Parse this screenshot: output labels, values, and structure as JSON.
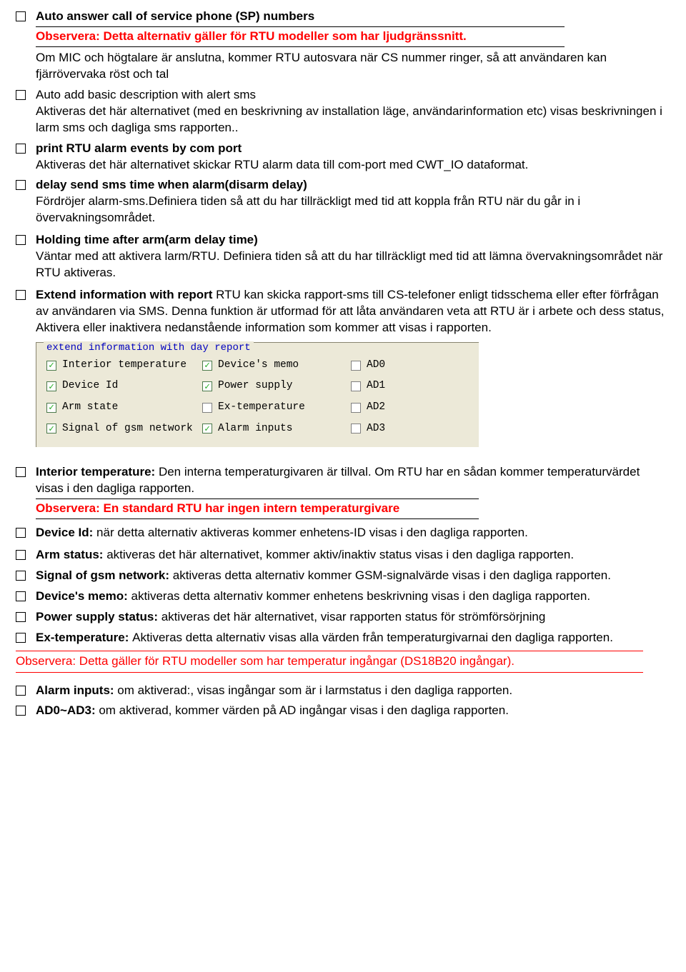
{
  "items": {
    "auto_answer": {
      "title": "Auto answer call of service phone (SP) numbers",
      "note": "Observera: Detta alternativ gäller för RTU modeller som har ljudgränssnitt.",
      "desc": "Om MIC och högtalare är anslutna, kommer RTU autosvara när CS nummer ringer, så att användaren kan fjärrövervaka röst och tal"
    },
    "auto_add": {
      "title": "Auto add basic description with alert sms",
      "desc": "Aktiveras det här alternativet  (med en beskrivning av installation läge, användarinformation etc) visas beskrivningen i larm sms och dagliga sms rapporten.."
    },
    "print_rtu": {
      "title": "print RTU alarm events by com port",
      "desc": "Aktiveras det här alternativet skickar RTU alarm data till com-port med CWT_IO dataformat."
    },
    "delay_send": {
      "title": "delay send sms time when alarm(disarm delay)",
      "desc": "Fördröjer alarm-sms.Definiera tiden så att du har tillräckligt med tid att koppla från RTU när du går in i  övervakningsområdet."
    },
    "holding": {
      "title": "Holding time after arm(arm delay time)",
      "desc": "Väntar med att aktivera larm/RTU. Definiera tiden så att du har tillräckligt med tid att lämna övervakningsområdet när RTU aktiveras."
    },
    "extend": {
      "title": "Extend information with report ",
      "desc": "RTU kan skicka rapport-sms till CS-telefoner enligt tidsschema eller efter förfrågan av användaren via SMS. Denna funktion är utformad för att låta användaren veta att RTU är i arbete och dess status, Aktivera eller inaktivera nedanstående information som kommer att visas i rapporten."
    },
    "interior_temp": {
      "title": "Interior temperature: ",
      "desc": "Den interna temperaturgivaren är tillval. Om RTU har en sådan kommer temperaturvärdet visas i den dagliga rapporten.",
      "note": "Observera: En standard RTU har ingen intern temperaturgivare"
    },
    "device_id": {
      "title": "Device Id: ",
      "desc": "när detta alternativ aktiveras kommer enhetens-ID visas i den dagliga rapporten."
    },
    "arm_status": {
      "title": "Arm status: ",
      "desc": "aktiveras det här alternativet, kommer aktiv/inaktiv status visas i den dagliga rapporten."
    },
    "signal": {
      "title": "Signal of gsm network: ",
      "desc": "aktiveras detta alternativ kommer GSM-signalvärde visas i den dagliga rapporten."
    },
    "memo": {
      "title": "Device's memo: ",
      "desc": "aktiveras detta alternativ kommer enhetens beskrivning visas i den dagliga rapporten."
    },
    "power": {
      "title": "Power supply status: ",
      "desc": "aktiveras det här alternativet, visar rapporten status för strömförsörjning"
    },
    "extemp": {
      "title": "Ex-temperature: ",
      "desc": "Aktiveras detta alternativ visas alla värden från temperaturgivarnai den dagliga rapporten."
    },
    "alarm_inputs": {
      "title": "Alarm inputs: ",
      "desc": "om aktiverad:, visas ingångar som är i larmstatus i den dagliga rapporten."
    },
    "ad0ad3": {
      "title": "AD0~AD3: ",
      "desc": "om aktiverad, kommer värden på AD ingångar visas i den dagliga rapporten."
    }
  },
  "bottom_note": "Observera: Detta gäller för RTU modeller som har temperatur ingångar (DS18B20 ingångar).",
  "panel": {
    "title": "extend information with day report",
    "cells": [
      {
        "label": "Interior temperature",
        "checked": true
      },
      {
        "label": "Device's memo",
        "checked": true
      },
      {
        "label": "AD0",
        "checked": false
      },
      {
        "label": "Device Id",
        "checked": true
      },
      {
        "label": "Power supply",
        "checked": true
      },
      {
        "label": "AD1",
        "checked": false
      },
      {
        "label": "Arm state",
        "checked": true
      },
      {
        "label": "Ex-temperature",
        "checked": false
      },
      {
        "label": "AD2",
        "checked": false
      },
      {
        "label": "Signal of gsm network",
        "checked": true
      },
      {
        "label": "Alarm inputs",
        "checked": true
      },
      {
        "label": "AD3",
        "checked": false
      }
    ]
  }
}
